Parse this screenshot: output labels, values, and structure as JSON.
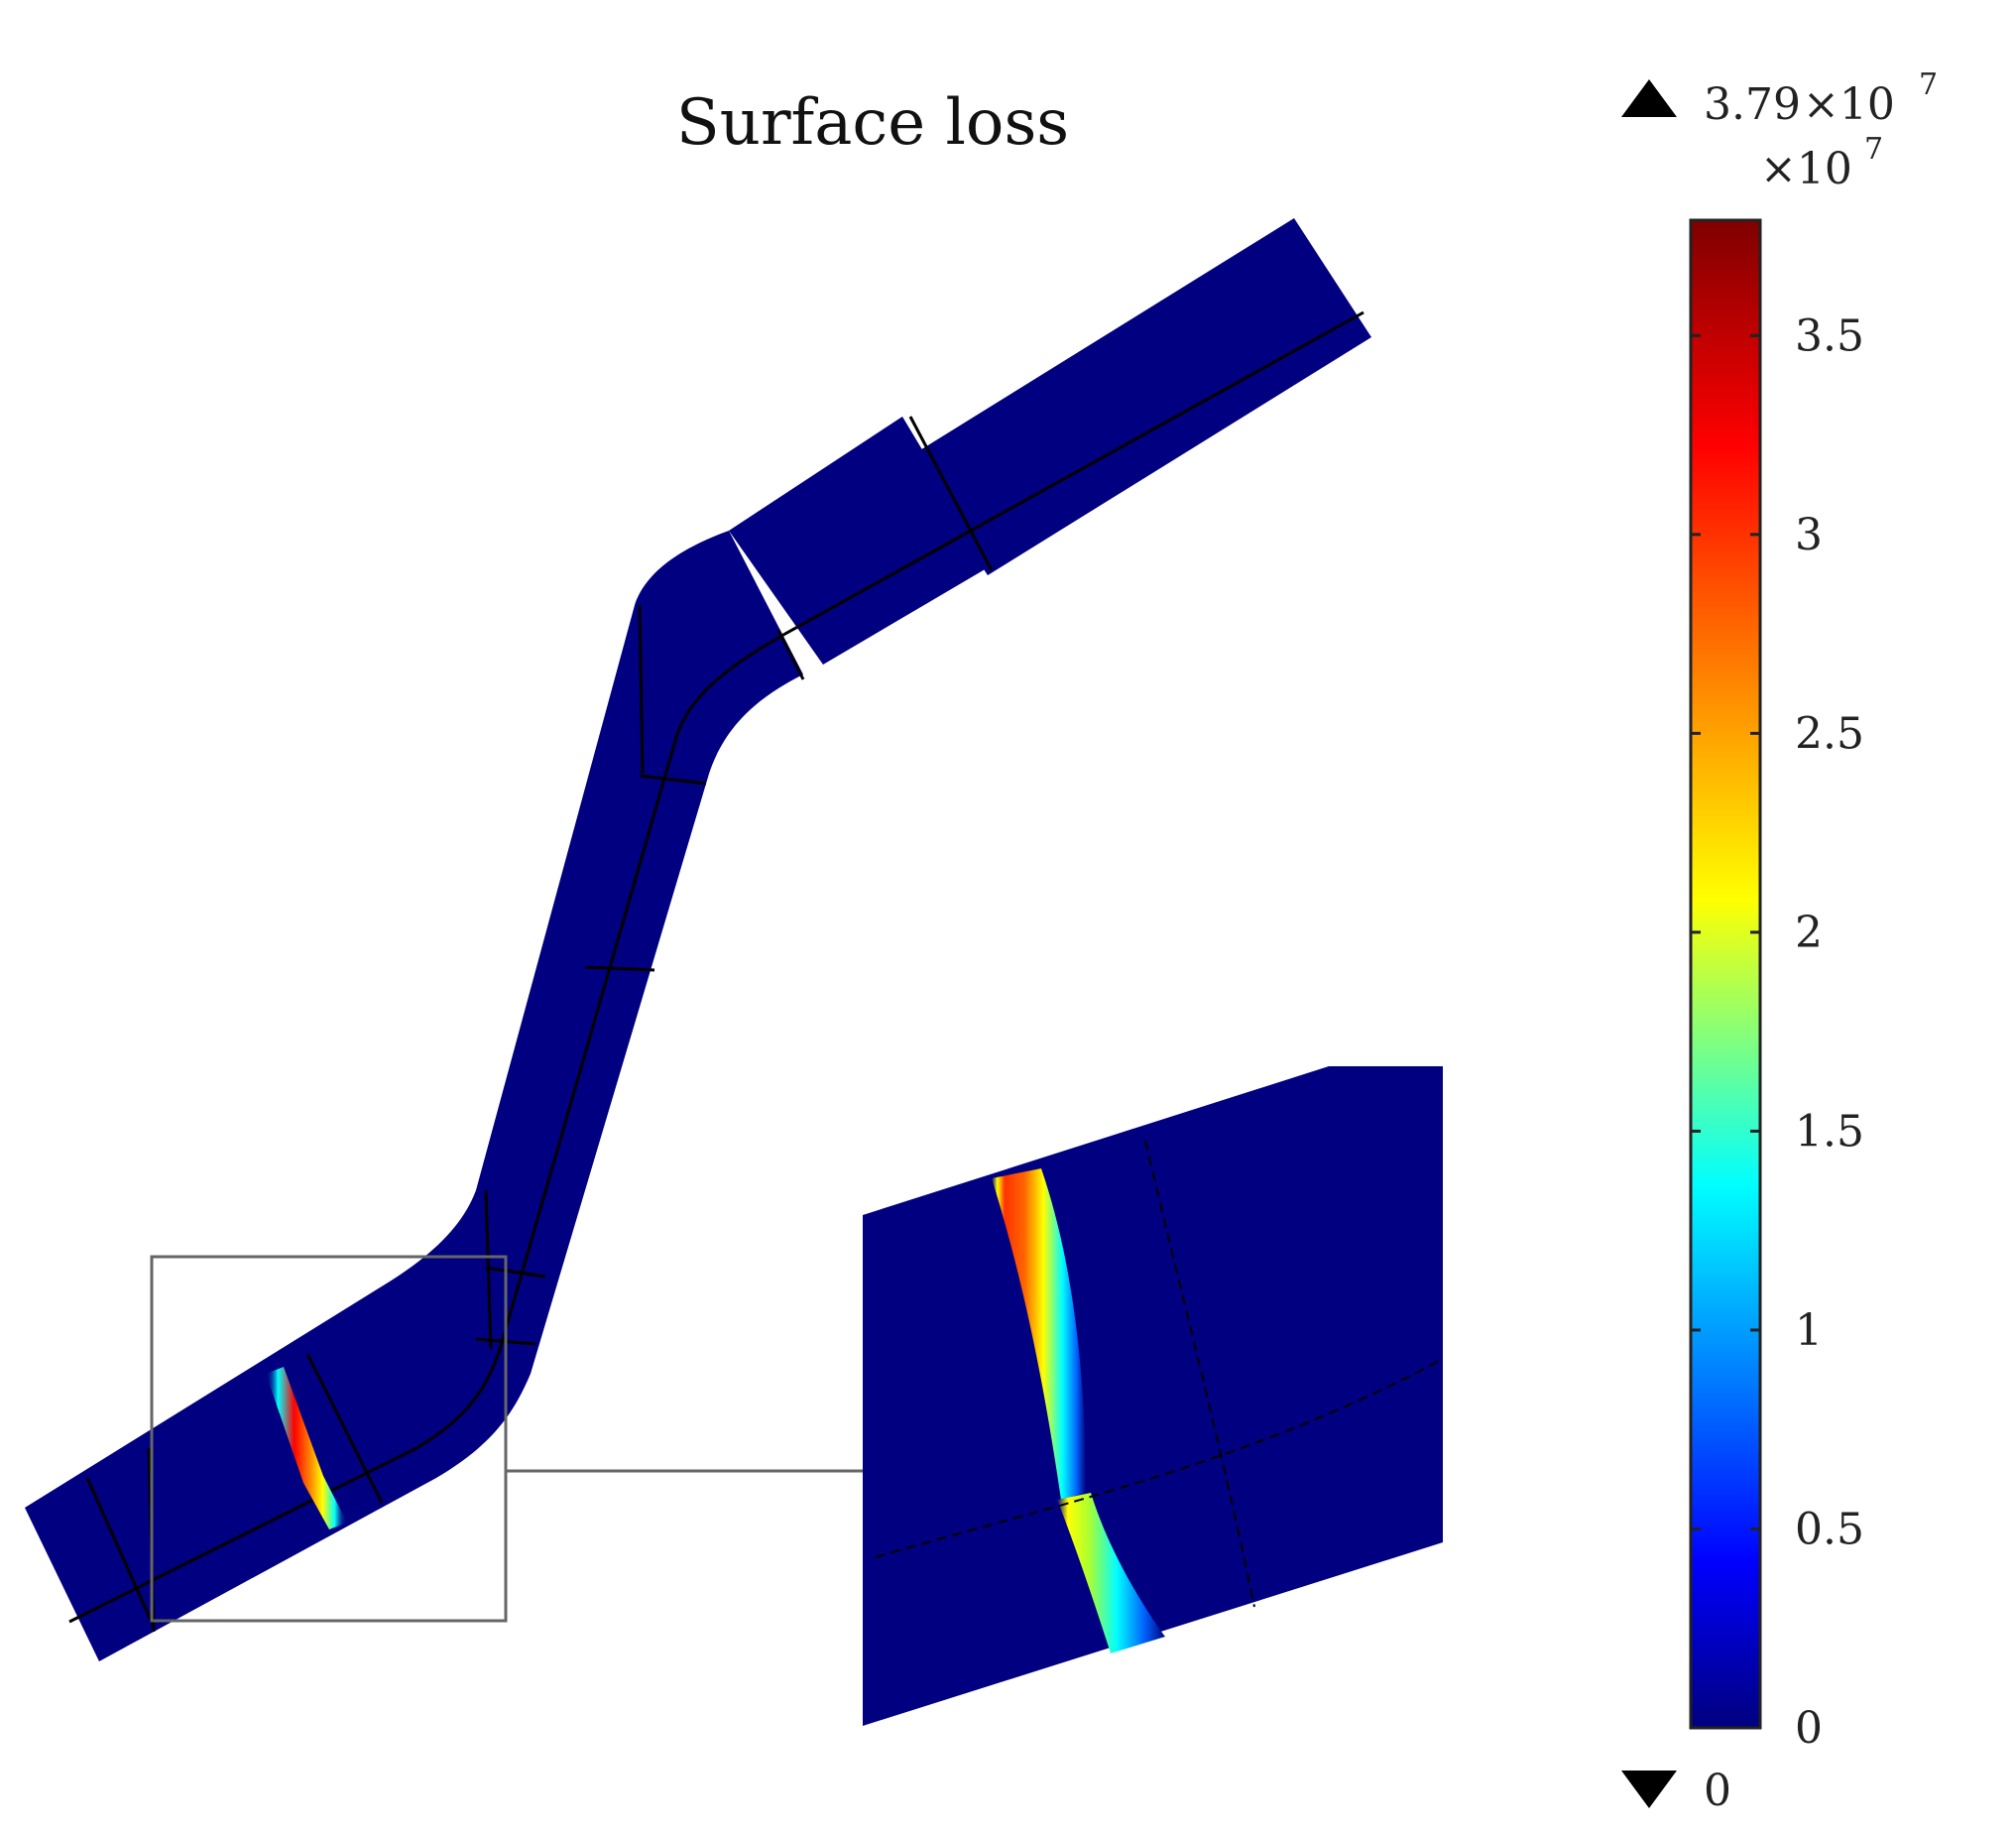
{
  "title": "Surface loss",
  "colorbar": {
    "max_value": "3.79",
    "exponent_base": "×10",
    "exponent": "7",
    "scale_factor": "×10",
    "scale_exponent": "7",
    "min_value": "0",
    "ticks": [
      {
        "label": "3.5",
        "value": 3.5
      },
      {
        "label": "3",
        "value": 3.0
      },
      {
        "label": "2.5",
        "value": 2.5
      },
      {
        "label": "2",
        "value": 2.0
      },
      {
        "label": "1.5",
        "value": 1.5
      },
      {
        "label": "1",
        "value": 1.0
      },
      {
        "label": "0.5",
        "value": 0.5
      },
      {
        "label": "0",
        "value": 0.0
      }
    ],
    "range": [
      0,
      3.79
    ],
    "colors": [
      "#00007f",
      "#0000ff",
      "#00ffff",
      "#ffff00",
      "#ff0000",
      "#7f0000"
    ],
    "max_marker_icon": "triangle-up-icon",
    "min_marker_icon": "triangle-down-icon"
  },
  "geometry_fill": "#000080"
}
